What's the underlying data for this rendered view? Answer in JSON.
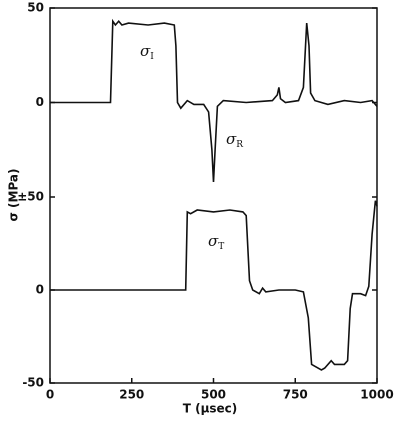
{
  "chart_data": [
    {
      "type": "line",
      "ylabel": "σ (MPa)",
      "xlim": [
        0,
        1000
      ],
      "ylim": [
        -50,
        50
      ],
      "yticks": [
        0,
        50
      ],
      "color": "#111111",
      "annotations": [
        {
          "symbol": "σ",
          "subscript": "I"
        },
        {
          "symbol": "σ",
          "subscript": "R"
        }
      ],
      "x": [
        0,
        185,
        192,
        200,
        210,
        220,
        240,
        300,
        350,
        380,
        385,
        390,
        400,
        420,
        440,
        470,
        485,
        495,
        500,
        505,
        512,
        530,
        600,
        680,
        695,
        700,
        705,
        720,
        760,
        775,
        785,
        792,
        797,
        810,
        850,
        900,
        950,
        985,
        1000
      ],
      "values": [
        0,
        0,
        43,
        41,
        43,
        41,
        42,
        41,
        42,
        41,
        30,
        0,
        -3,
        1,
        -1,
        -1,
        -5,
        -25,
        -42,
        -25,
        -2,
        1,
        0,
        1,
        4,
        8,
        2,
        0,
        1,
        8,
        42,
        30,
        5,
        1,
        -1,
        1,
        0,
        1,
        -2
      ]
    },
    {
      "type": "line",
      "xlabel": "T (μsec)",
      "xlim": [
        0,
        1000
      ],
      "xticks": [
        0,
        250,
        500,
        750,
        1000
      ],
      "ylim": [
        -50,
        50
      ],
      "yticks": [
        -50,
        0,
        {
          "value": 50,
          "label": "±50"
        }
      ],
      "color": "#111111",
      "annotations": [
        {
          "symbol": "σ",
          "subscript": "T"
        }
      ],
      "x": [
        0,
        415,
        420,
        430,
        450,
        500,
        550,
        590,
        600,
        610,
        620,
        640,
        650,
        660,
        700,
        750,
        775,
        790,
        800,
        830,
        840,
        860,
        870,
        900,
        910,
        918,
        925,
        950,
        965,
        975,
        985,
        995,
        1000
      ],
      "values": [
        0,
        0,
        42,
        41,
        43,
        42,
        43,
        42,
        40,
        5,
        0,
        -2,
        1,
        -1,
        0,
        0,
        -1,
        -15,
        -40,
        -43,
        -42,
        -38,
        -40,
        -40,
        -38,
        -10,
        -2,
        -2,
        -3,
        2,
        30,
        48,
        45
      ]
    }
  ]
}
